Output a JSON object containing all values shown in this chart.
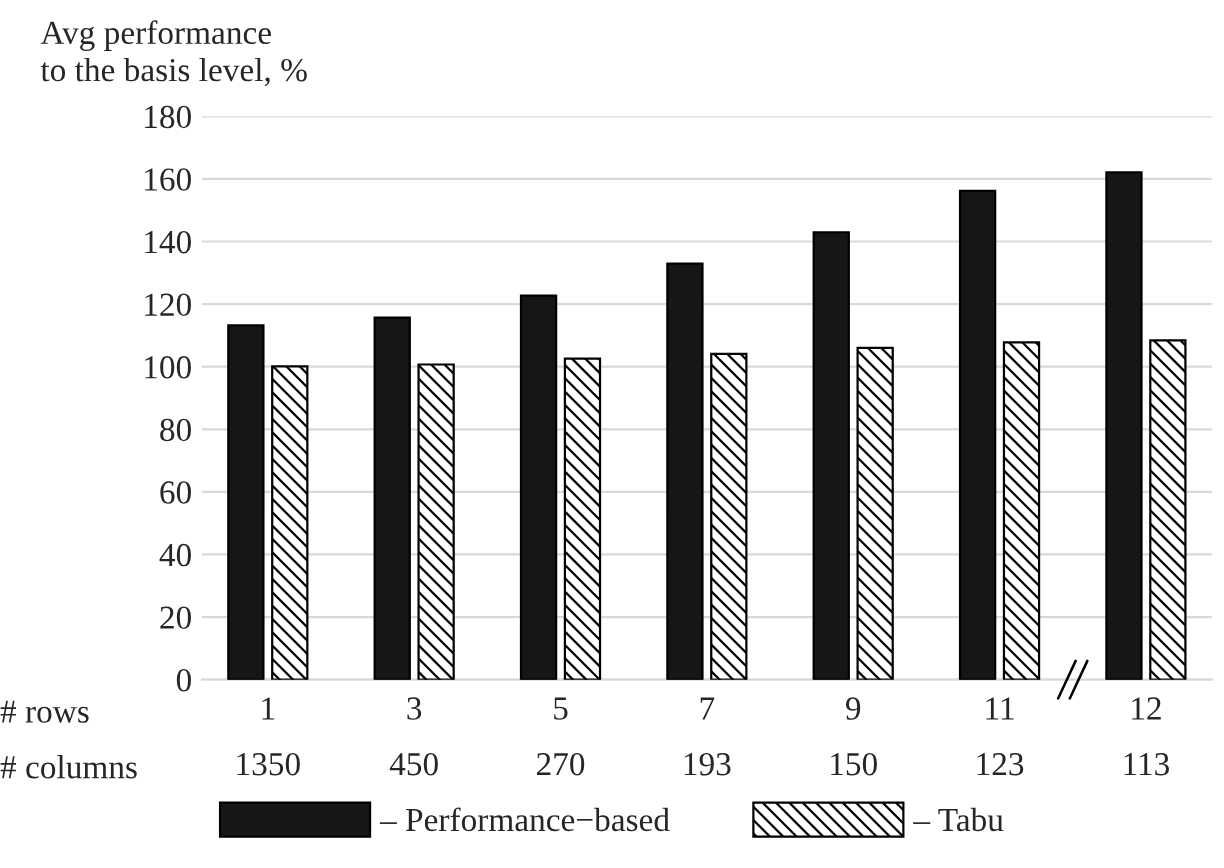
{
  "chart_data": {
    "type": "bar",
    "ylabel": "Avg performance\nto the basis level, %",
    "xlabel": "# rows\n# columns",
    "categories": [
      "1\n1350",
      "3\n450",
      "5\n270",
      "7\n193",
      "9\n150",
      "11\n123",
      "12\n113"
    ],
    "series": [
      {
        "name": "– Performance−based",
        "color": "#161616",
        "values": [
          113.2,
          115.7,
          122.7,
          132.9,
          142.9,
          156.2,
          162.1
        ]
      },
      {
        "name": "– Tabu",
        "color": "#000000",
        "values": [
          100.1,
          100.7,
          102.6,
          104.1,
          106.0,
          107.8,
          108.4
        ]
      }
    ],
    "ylim": [
      0,
      180
    ],
    "yticks": [
      0,
      20,
      40,
      60,
      80,
      100,
      120,
      140,
      160,
      180
    ],
    "grid": "y",
    "legend": "bottom"
  }
}
